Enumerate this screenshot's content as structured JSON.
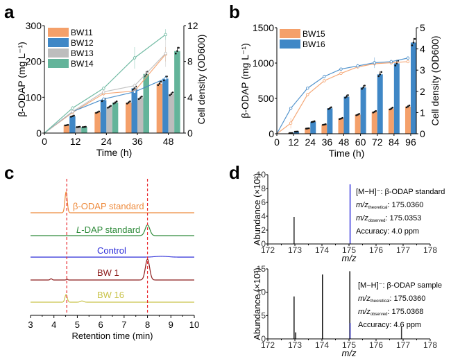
{
  "chart_data": [
    {
      "panel": "a",
      "type": "bar",
      "secondary_type": "line",
      "xlabel": "Time (h)",
      "ylabel": "β-ODAP (mg L⁻¹)",
      "ylabel2": "Cell density (OD600)",
      "xlim": [
        0,
        54
      ],
      "ylim": [
        0,
        300
      ],
      "ylim2": [
        0,
        12
      ],
      "xticks": [
        "0",
        "12",
        "24",
        "36",
        "48"
      ],
      "yticks": [
        "0",
        "100",
        "200",
        "300"
      ],
      "yticks2": [
        "0",
        "4",
        "8",
        "12"
      ],
      "categories": [
        12,
        24,
        36,
        48
      ],
      "series": [
        {
          "name": "BW11",
          "color": "#f4a06a",
          "values": [
            22,
            58,
            85,
            138
          ],
          "od": [
            0,
            2.3,
            4.4,
            4.7,
            8.8
          ],
          "od_err": [
            0,
            0.2,
            0.3,
            0.3,
            0.8
          ]
        },
        {
          "name": "BW12",
          "color": "#3f87c6",
          "values": [
            47,
            92,
            125,
            152
          ],
          "od": [
            0,
            2.4,
            3.8,
            4.6,
            6.1
          ],
          "od_err": [
            0,
            0.1,
            0.2,
            0.2,
            0.3
          ]
        },
        {
          "name": "BW13",
          "color": "#bdbdbd",
          "values": [
            17,
            73,
            98,
            109
          ],
          "od": [
            0,
            2.4,
            4.6,
            5.3,
            8.9
          ],
          "od_err": [
            0,
            0.1,
            0.4,
            0.3,
            1.5
          ]
        },
        {
          "name": "BW14",
          "color": "#63b49a",
          "values": [
            17,
            85,
            165,
            229
          ],
          "od": [
            0,
            2.8,
            5.0,
            8.4,
            11.0
          ],
          "od_err": [
            0,
            0.2,
            0.2,
            1.2,
            0.6
          ]
        }
      ],
      "od_times": [
        0,
        12,
        24,
        36,
        48
      ],
      "legend_position": "top-left"
    },
    {
      "panel": "b",
      "type": "bar",
      "secondary_type": "line",
      "xlabel": "Time (h)",
      "ylabel": "β-ODAP (mg L⁻¹)",
      "ylabel2": "Cell density (OD600)",
      "xlim": [
        0,
        100
      ],
      "ylim": [
        0,
        1500
      ],
      "ylim2": [
        0,
        5
      ],
      "xticks": [
        "0",
        "12",
        "24",
        "36",
        "48",
        "60",
        "72",
        "84",
        "96"
      ],
      "yticks": [
        "0",
        "500",
        "1000",
        "1500"
      ],
      "yticks2": [
        "0",
        "1",
        "2",
        "3",
        "4",
        "5"
      ],
      "categories": [
        12,
        24,
        36,
        48,
        60,
        72,
        84,
        96
      ],
      "series": [
        {
          "name": "BW15",
          "color": "#f4a06a",
          "values": [
            10,
            75,
            130,
            215,
            270,
            310,
            355,
            385
          ],
          "od": [
            0,
            0.5,
            1.85,
            2.5,
            2.85,
            3.15,
            3.3,
            3.35,
            3.4
          ],
          "od_err": [
            0,
            0.25,
            0.08,
            0.05,
            0.04,
            0.05,
            0.1,
            0.1,
            0.05
          ]
        },
        {
          "name": "BW16",
          "color": "#3f87c6",
          "values": [
            30,
            170,
            360,
            525,
            655,
            840,
            995,
            1290
          ],
          "od": [
            0,
            1.2,
            2.15,
            2.7,
            3.05,
            3.2,
            3.35,
            3.4,
            3.57
          ],
          "od_err": [
            0,
            0.05,
            0.06,
            0.08,
            0.05,
            0.1,
            0.25,
            0.1,
            0.05
          ]
        }
      ],
      "od_times": [
        0,
        12,
        24,
        36,
        48,
        60,
        72,
        84,
        96
      ],
      "legend_position": "top-left"
    },
    {
      "panel": "c",
      "type": "line",
      "xlabel": "Retention time (min)",
      "xlim": [
        3,
        10
      ],
      "xticks": [
        "3",
        "4",
        "5",
        "6",
        "7",
        "8",
        "9",
        "10"
      ],
      "reference_lines": [
        4.55,
        8.0
      ],
      "reference_color": "#e8262b",
      "series": [
        {
          "name": "β-ODAP standard",
          "color": "#ee8a3c",
          "peaks": [
            {
              "rt": 4.52,
              "height": 1.0,
              "width": 0.05
            }
          ]
        },
        {
          "name": "L-DAP standard",
          "color": "#2e8b3a",
          "label_italic_prefix": "L",
          "label_rest": "-DAP standard",
          "peaks": [
            {
              "rt": 8.0,
              "height": 0.55,
              "width": 0.1
            }
          ]
        },
        {
          "name": "Control",
          "color": "#2b2bd8",
          "peaks": [
            {
              "rt": 8.6,
              "height": 0.09,
              "width": 0.25
            }
          ]
        },
        {
          "name": "BW 1",
          "color": "#8b1a1a",
          "peaks": [
            {
              "rt": 3.88,
              "height": 0.06,
              "width": 0.04
            },
            {
              "rt": 4.56,
              "height": 0.04,
              "width": 0.03
            },
            {
              "rt": 8.0,
              "height": 1.0,
              "width": 0.09
            }
          ]
        },
        {
          "name": "BW 16",
          "color": "#c9c34a",
          "peaks": [
            {
              "rt": 4.52,
              "height": 0.5,
              "width": 0.05
            },
            {
              "rt": 5.2,
              "height": 0.08,
              "width": 0.07
            }
          ]
        }
      ]
    },
    {
      "panel": "d-top",
      "type": "bar",
      "xlabel": "m/z",
      "ylabel": "Abundance (×10²)",
      "xlim": [
        172,
        178
      ],
      "ylim": [
        0,
        10
      ],
      "xticks": [
        "172",
        "173",
        "174",
        "175",
        "176",
        "177",
        "178"
      ],
      "yticks": [
        "0",
        "2",
        "4",
        "6",
        "8",
        "10"
      ],
      "peaks": [
        {
          "mz": 172.97,
          "abundance": 3.9,
          "color": "#222222"
        },
        {
          "mz": 175.04,
          "abundance": 8.6,
          "color": "#3333dd"
        }
      ],
      "annotation": {
        "title": "[M−H]⁻: β-ODAP standard",
        "theoretical_label": "theoretical",
        "theoretical_value": ": 175.0360",
        "observed_label": "observed",
        "observed_value": ": 175.0353",
        "accuracy": "Accuracy: 4.0 ppm"
      }
    },
    {
      "panel": "d-bottom",
      "type": "bar",
      "xlabel": "m/z",
      "ylabel": "Abundance (×10³)",
      "xlim": [
        172,
        178
      ],
      "ylim": [
        0,
        15
      ],
      "xticks": [
        "172",
        "173",
        "174",
        "175",
        "176",
        "177",
        "178"
      ],
      "yticks": [
        "0",
        "5",
        "10",
        "15"
      ],
      "peaks": [
        {
          "mz": 172.97,
          "abundance": 9.1,
          "color": "#111111"
        },
        {
          "mz": 173.03,
          "abundance": 1.4,
          "color": "#111111"
        },
        {
          "mz": 174.02,
          "abundance": 13.8,
          "color": "#111111"
        },
        {
          "mz": 175.03,
          "abundance": 14.5,
          "color": "#111111"
        },
        {
          "mz": 175.04,
          "abundance": 3.4,
          "color": "#2222aa"
        },
        {
          "mz": 176.94,
          "abundance": 2.6,
          "color": "#333333"
        }
      ],
      "annotation": {
        "title": "[M−H]⁻: β-ODAP sample",
        "theoretical_label": "theoretical",
        "theoretical_value": ": 175.0360",
        "observed_label": "observed",
        "observed_value": ": 175.0368",
        "accuracy": "Accuracy: 4.6 ppm"
      }
    }
  ],
  "panel_labels": [
    "a",
    "b",
    "c",
    "d"
  ],
  "mz_prefix": "m/z"
}
